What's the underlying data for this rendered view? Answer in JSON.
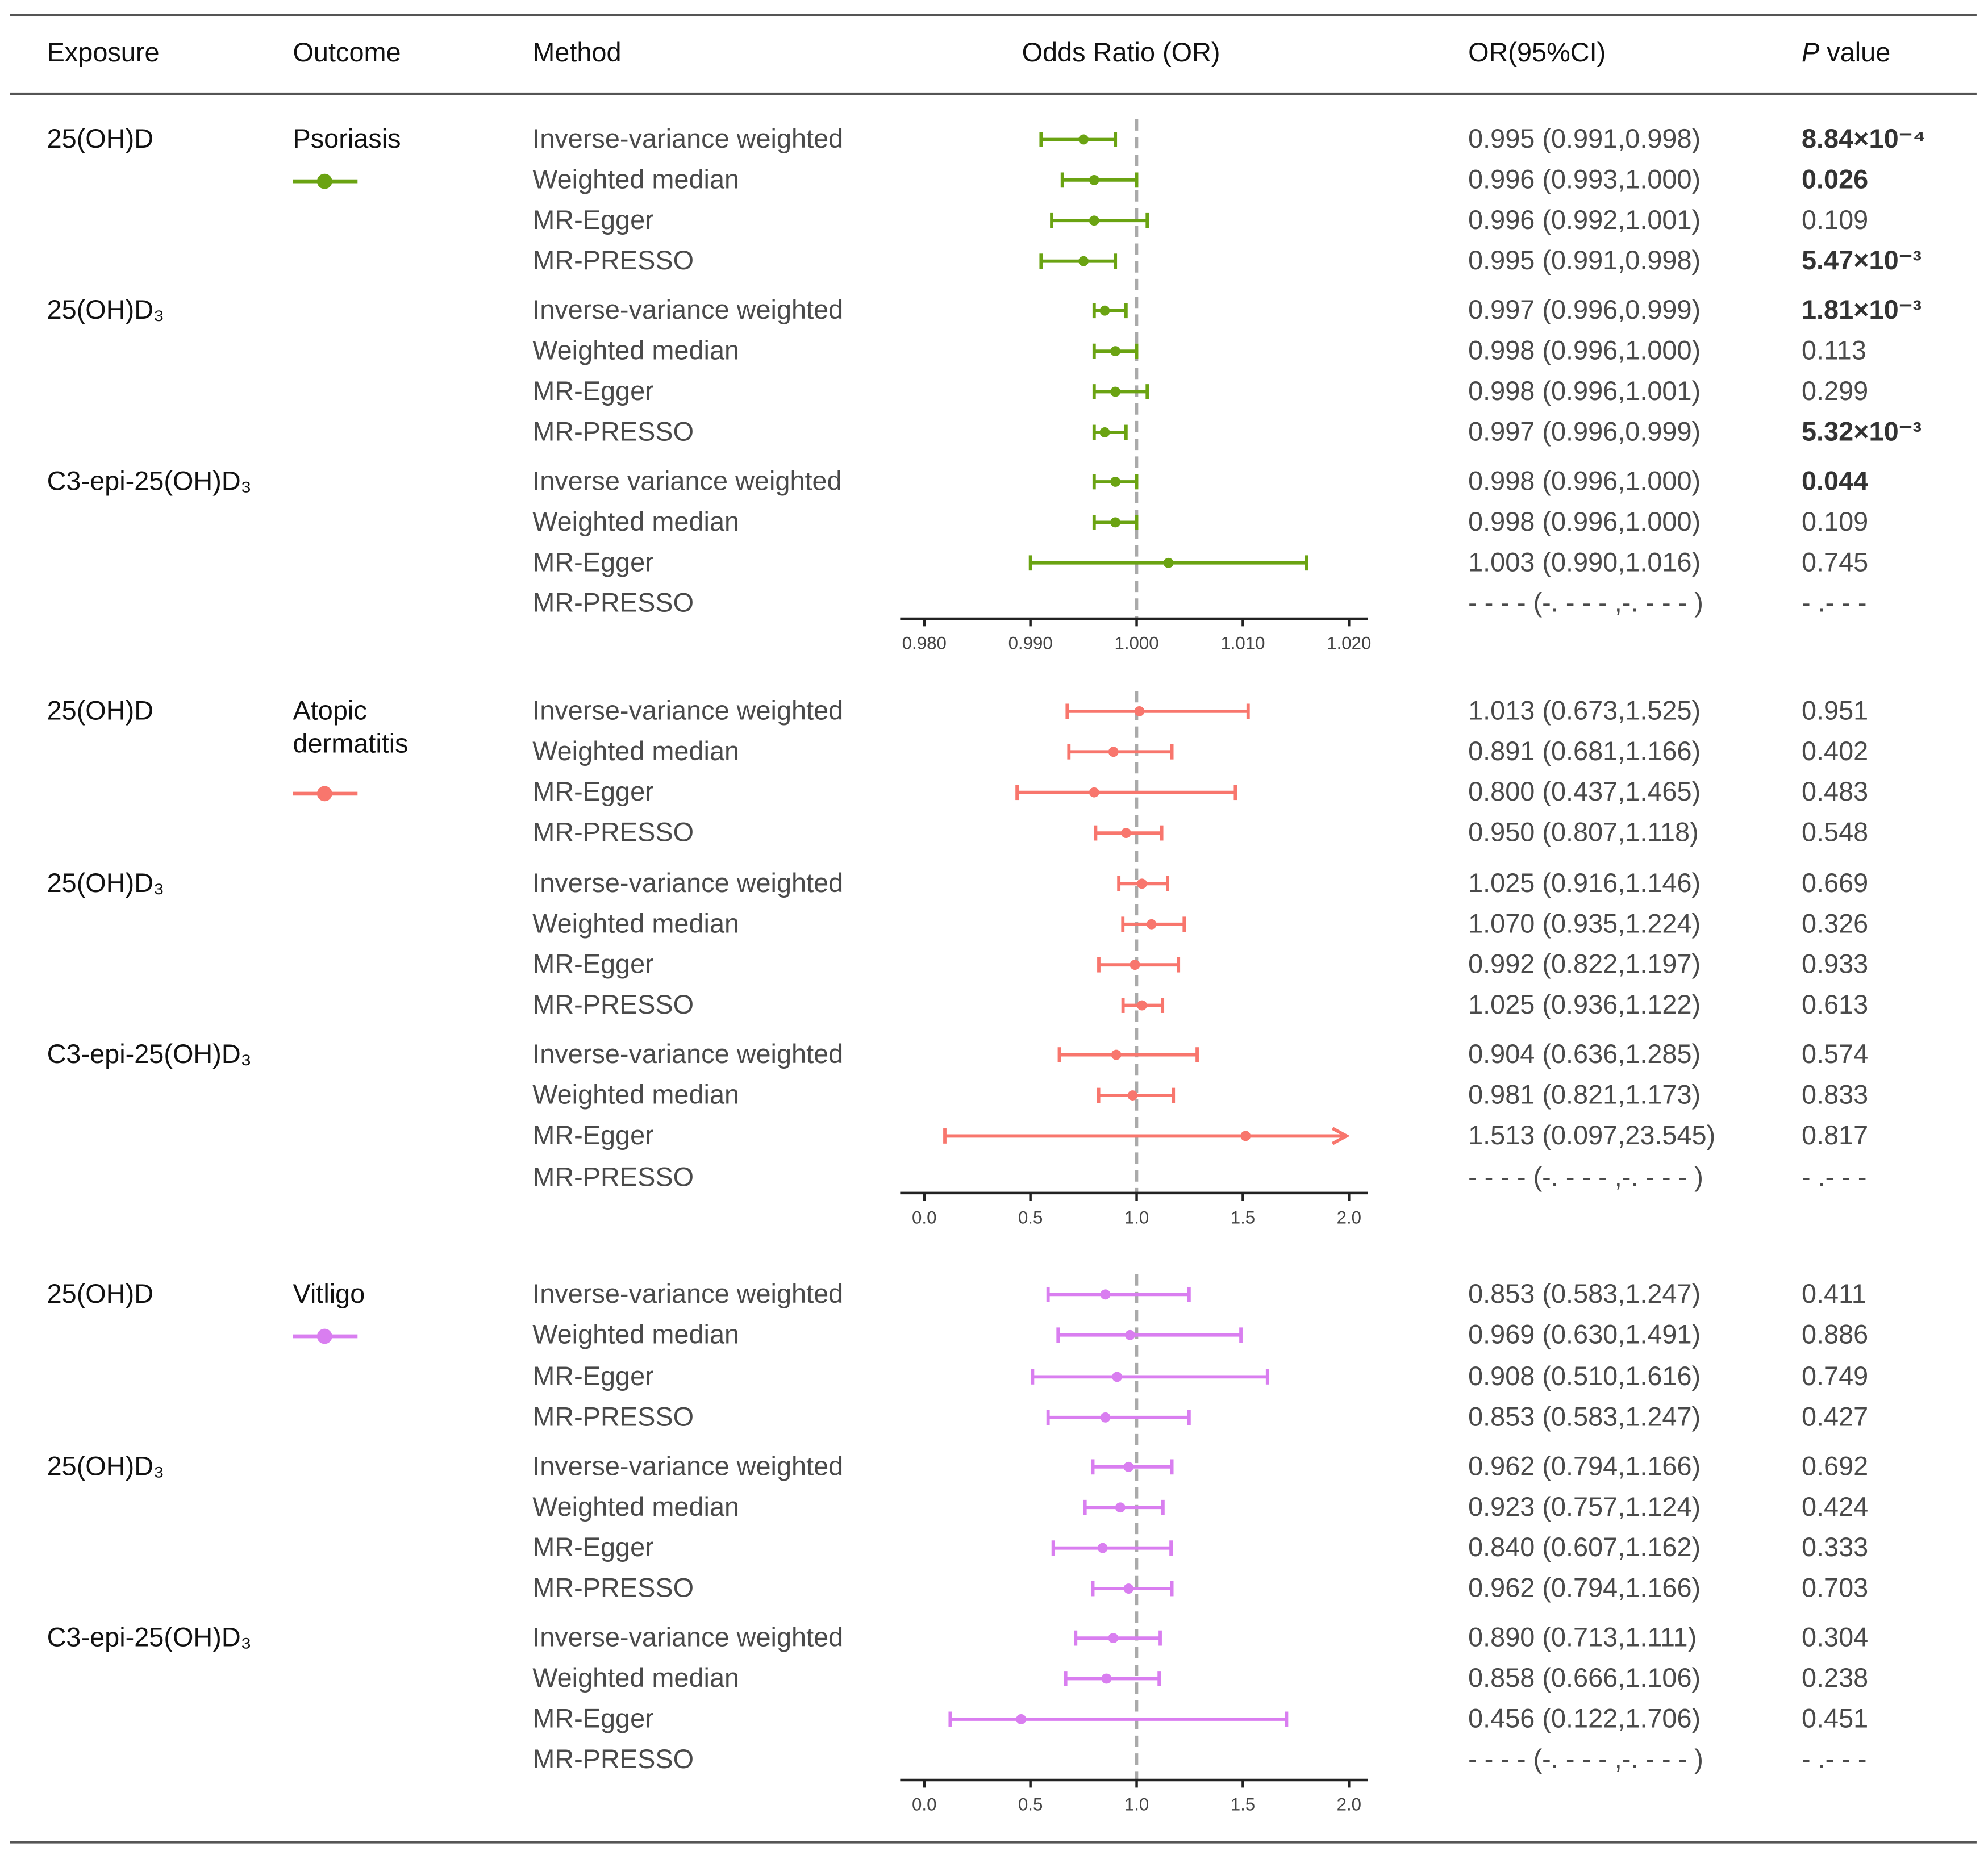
{
  "header": {
    "exposure": "Exposure",
    "outcome": "Outcome",
    "method": "Method",
    "plot": "Odds Ratio (OR)",
    "or_ci": "OR(95%CI)",
    "p_italic": "P",
    "p_rest": " value"
  },
  "chart_data": {
    "type": "forest",
    "reference_line": 1.0,
    "panels": [
      {
        "outcome": [
          "Psoriasis"
        ],
        "color": "#6aa312",
        "xlim": [
          0.978,
          1.0225
        ],
        "ticks": [
          "0.980",
          "0.990",
          "1.000",
          "1.010",
          "1.020"
        ],
        "tick_values": [
          0.98,
          0.99,
          1.0,
          1.01,
          1.02
        ],
        "groups": [
          {
            "exposure": "25(OH)D",
            "rows": [
              {
                "method": "Inverse-variance weighted",
                "or": 0.995,
                "lo": 0.991,
                "hi": 0.998,
                "ci_text": "0.995 (0.991,0.998)",
                "p": "8.84×10⁻⁴",
                "p_bold": true
              },
              {
                "method": "Weighted median",
                "or": 0.996,
                "lo": 0.993,
                "hi": 1.0,
                "ci_text": "0.996 (0.993,1.000)",
                "p": "0.026",
                "p_bold": true
              },
              {
                "method": "MR-Egger",
                "or": 0.996,
                "lo": 0.992,
                "hi": 1.001,
                "ci_text": "0.996 (0.992,1.001)",
                "p": "0.109",
                "p_bold": false
              },
              {
                "method": "MR-PRESSO",
                "or": 0.995,
                "lo": 0.991,
                "hi": 0.998,
                "ci_text": "0.995 (0.991,0.998)",
                "p": "5.47×10⁻³",
                "p_bold": true
              }
            ]
          },
          {
            "exposure": "25(OH)D₃",
            "rows": [
              {
                "method": "Inverse-variance weighted",
                "or": 0.997,
                "lo": 0.996,
                "hi": 0.999,
                "ci_text": "0.997 (0.996,0.999)",
                "p": "1.81×10⁻³",
                "p_bold": true
              },
              {
                "method": "Weighted median",
                "or": 0.998,
                "lo": 0.996,
                "hi": 1.0,
                "ci_text": "0.998 (0.996,1.000)",
                "p": "0.113",
                "p_bold": false
              },
              {
                "method": "MR-Egger",
                "or": 0.998,
                "lo": 0.996,
                "hi": 1.001,
                "ci_text": "0.998 (0.996,1.001)",
                "p": "0.299",
                "p_bold": false
              },
              {
                "method": "MR-PRESSO",
                "or": 0.997,
                "lo": 0.996,
                "hi": 0.999,
                "ci_text": "0.997 (0.996,0.999)",
                "p": "5.32×10⁻³",
                "p_bold": true
              }
            ]
          },
          {
            "exposure": "C3-epi-25(OH)D₃",
            "rows": [
              {
                "method": "Inverse variance weighted",
                "or": 0.998,
                "lo": 0.996,
                "hi": 1.0,
                "ci_text": "0.998 (0.996,1.000)",
                "p": "0.044",
                "p_bold": true
              },
              {
                "method": "Weighted median",
                "or": 0.998,
                "lo": 0.996,
                "hi": 1.0,
                "ci_text": "0.998 (0.996,1.000)",
                "p": "0.109",
                "p_bold": false
              },
              {
                "method": "MR-Egger",
                "or": 1.003,
                "lo": 0.99,
                "hi": 1.016,
                "ci_text": "1.003 (0.990,1.016)",
                "p": "0.745",
                "p_bold": false
              },
              {
                "method": "MR-PRESSO",
                "or": null,
                "lo": null,
                "hi": null,
                "ci_text": "- - - -  (-. - - - ,-. - - - )",
                "p": "- .- - -",
                "p_bold": false
              }
            ]
          }
        ]
      },
      {
        "outcome": [
          "Atopic",
          "dermatitis"
        ],
        "color": "#f8766d",
        "xlim": [
          -0.11,
          2.11
        ],
        "ticks": [
          "0.0",
          "0.5",
          "1.0",
          "1.5",
          "2.0"
        ],
        "tick_values": [
          0,
          0.5,
          1,
          1.5,
          2
        ],
        "groups": [
          {
            "exposure": "25(OH)D",
            "rows": [
              {
                "method": "Inverse-variance weighted",
                "or": 1.013,
                "lo": 0.673,
                "hi": 1.525,
                "ci_text": "1.013 (0.673,1.525)",
                "p": "0.951",
                "p_bold": false
              },
              {
                "method": "Weighted median",
                "or": 0.891,
                "lo": 0.681,
                "hi": 1.166,
                "ci_text": "0.891 (0.681,1.166)",
                "p": "0.402",
                "p_bold": false
              },
              {
                "method": "MR-Egger",
                "or": 0.8,
                "lo": 0.437,
                "hi": 1.465,
                "ci_text": "0.800 (0.437,1.465)",
                "p": "0.483",
                "p_bold": false
              },
              {
                "method": "MR-PRESSO",
                "or": 0.95,
                "lo": 0.807,
                "hi": 1.118,
                "ci_text": "0.950 (0.807,1.118)",
                "p": "0.548",
                "p_bold": false
              }
            ]
          },
          {
            "exposure": "25(OH)D₃",
            "rows": [
              {
                "method": "Inverse-variance weighted",
                "or": 1.025,
                "lo": 0.916,
                "hi": 1.146,
                "ci_text": "1.025 (0.916,1.146)",
                "p": "0.669",
                "p_bold": false
              },
              {
                "method": "Weighted median",
                "or": 1.07,
                "lo": 0.935,
                "hi": 1.224,
                "ci_text": "1.070 (0.935,1.224)",
                "p": "0.326",
                "p_bold": false
              },
              {
                "method": "MR-Egger",
                "or": 0.992,
                "lo": 0.822,
                "hi": 1.197,
                "ci_text": "0.992 (0.822,1.197)",
                "p": "0.933",
                "p_bold": false
              },
              {
                "method": "MR-PRESSO",
                "or": 1.025,
                "lo": 0.936,
                "hi": 1.122,
                "ci_text": "1.025 (0.936,1.122)",
                "p": "0.613",
                "p_bold": false
              }
            ]
          },
          {
            "exposure": "C3-epi-25(OH)D₃",
            "rows": [
              {
                "method": "Inverse-variance weighted",
                "or": 0.904,
                "lo": 0.636,
                "hi": 1.285,
                "ci_text": "0.904 (0.636,1.285)",
                "p": "0.574",
                "p_bold": false
              },
              {
                "method": "Weighted median",
                "or": 0.981,
                "lo": 0.821,
                "hi": 1.173,
                "ci_text": "0.981 (0.821,1.173)",
                "p": "0.833",
                "p_bold": false
              },
              {
                "method": "MR-Egger",
                "or": 1.513,
                "lo": 0.097,
                "hi": 23.545,
                "ci_text": "1.513 (0.097,23.545)",
                "p": "0.817",
                "p_bold": false
              },
              {
                "method": "MR-PRESSO",
                "or": null,
                "lo": null,
                "hi": null,
                "ci_text": "- - - -  (-. - - - ,-. - - - )",
                "p": "- .- - -",
                "p_bold": false
              }
            ]
          }
        ]
      },
      {
        "outcome": [
          "Vitligo"
        ],
        "color": "#d97ef0",
        "xlim": [
          -0.11,
          2.11
        ],
        "ticks": [
          "0.0",
          "0.5",
          "1.0",
          "1.5",
          "2.0"
        ],
        "tick_values": [
          0,
          0.5,
          1,
          1.5,
          2
        ],
        "groups": [
          {
            "exposure": "25(OH)D",
            "rows": [
              {
                "method": "Inverse-variance weighted",
                "or": 0.853,
                "lo": 0.583,
                "hi": 1.247,
                "ci_text": "0.853 (0.583,1.247)",
                "p": "0.411",
                "p_bold": false
              },
              {
                "method": "Weighted median",
                "or": 0.969,
                "lo": 0.63,
                "hi": 1.491,
                "ci_text": "0.969 (0.630,1.491)",
                "p": "0.886",
                "p_bold": false
              },
              {
                "method": "MR-Egger",
                "or": 0.908,
                "lo": 0.51,
                "hi": 1.616,
                "ci_text": "0.908 (0.510,1.616)",
                "p": "0.749",
                "p_bold": false
              },
              {
                "method": "MR-PRESSO",
                "or": 0.853,
                "lo": 0.583,
                "hi": 1.247,
                "ci_text": "0.853 (0.583,1.247)",
                "p": "0.427",
                "p_bold": false
              }
            ]
          },
          {
            "exposure": "25(OH)D₃",
            "rows": [
              {
                "method": "Inverse-variance weighted",
                "or": 0.962,
                "lo": 0.794,
                "hi": 1.166,
                "ci_text": "0.962 (0.794,1.166)",
                "p": "0.692",
                "p_bold": false
              },
              {
                "method": "Weighted median",
                "or": 0.923,
                "lo": 0.757,
                "hi": 1.124,
                "ci_text": "0.923 (0.757,1.124)",
                "p": "0.424",
                "p_bold": false
              },
              {
                "method": "MR-Egger",
                "or": 0.84,
                "lo": 0.607,
                "hi": 1.162,
                "ci_text": "0.840 (0.607,1.162)",
                "p": "0.333",
                "p_bold": false
              },
              {
                "method": "MR-PRESSO",
                "or": 0.962,
                "lo": 0.794,
                "hi": 1.166,
                "ci_text": "0.962 (0.794,1.166)",
                "p": "0.703",
                "p_bold": false
              }
            ]
          },
          {
            "exposure": "C3-epi-25(OH)D₃",
            "rows": [
              {
                "method": "Inverse-variance weighted",
                "or": 0.89,
                "lo": 0.713,
                "hi": 1.111,
                "ci_text": "0.890 (0.713,1.111)",
                "p": "0.304",
                "p_bold": false
              },
              {
                "method": "Weighted median",
                "or": 0.858,
                "lo": 0.666,
                "hi": 1.106,
                "ci_text": "0.858 (0.666,1.106)",
                "p": "0.238",
                "p_bold": false
              },
              {
                "method": "MR-Egger",
                "or": 0.456,
                "lo": 0.122,
                "hi": 1.706,
                "ci_text": "0.456 (0.122,1.706)",
                "p": "0.451",
                "p_bold": false
              },
              {
                "method": "MR-PRESSO",
                "or": null,
                "lo": null,
                "hi": null,
                "ci_text": "- - - -  (-. - - - ,-. - - - )",
                "p": "- .- - -",
                "p_bold": false
              }
            ]
          }
        ]
      }
    ]
  }
}
